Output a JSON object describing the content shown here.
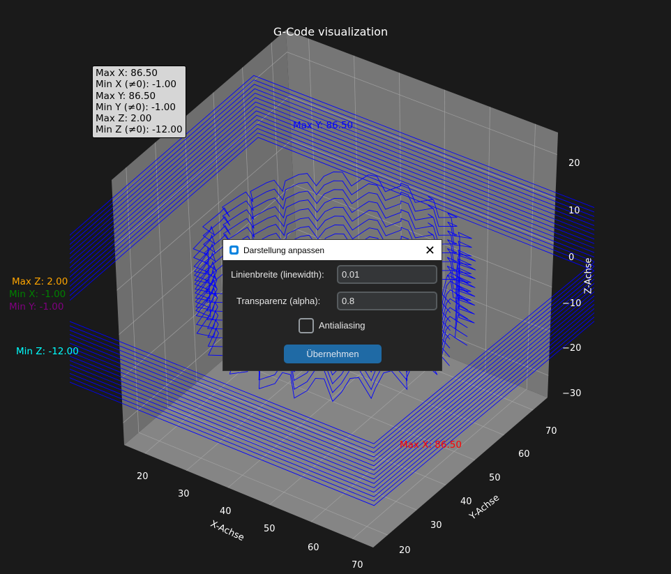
{
  "figure": {
    "title": "G-Code visualization",
    "stats_box": [
      "Max X: 86.50",
      "Min X (≠0): -1.00",
      "Max Y: 86.50",
      "Min Y (≠0): -1.00",
      "Max Z: 2.00",
      "Min Z (≠0): -12.00"
    ],
    "annotations": {
      "max_y": {
        "text": "Max Y: 86.50",
        "color": "#0000ff"
      },
      "max_x": {
        "text": "Max X: 86.50",
        "color": "#ff0000"
      },
      "max_z": {
        "text": "Max Z: 2.00",
        "color": "#ffa500"
      },
      "min_x": {
        "text": "Min X: -1.00",
        "color": "#008000"
      },
      "min_y": {
        "text": "Min Y: -1.00",
        "color": "#800080"
      },
      "min_z": {
        "text": "Min Z: -12.00",
        "color": "#00ffff"
      }
    },
    "line_color": "#0000ff",
    "background": "#1a1a1a"
  },
  "chart_data": {
    "type": "line3d",
    "title": "G-Code visualization",
    "xlabel": "X-Achse",
    "ylabel": "Y-Achse",
    "zlabel": "Z-Achse",
    "xticks": [
      "20",
      "30",
      "40",
      "50",
      "60",
      "70"
    ],
    "yticks": [
      "20",
      "30",
      "40",
      "50",
      "60",
      "70"
    ],
    "zticks": [
      "20",
      "10",
      "0",
      "−10",
      "−20",
      "−30"
    ],
    "xlim": [
      15,
      75
    ],
    "ylim": [
      15,
      75
    ],
    "zlim": [
      -35,
      25
    ],
    "grid": true,
    "data_extent": {
      "x": [
        -1,
        86.5
      ],
      "y": [
        -1,
        86.5
      ],
      "z": [
        -12,
        2
      ]
    }
  },
  "dialog": {
    "title": "Darstellung anpassen",
    "linewidth_label": "Linienbreite (linewidth):",
    "linewidth_value": "0.01",
    "alpha_label": "Transparenz (alpha):",
    "alpha_value": "0.8",
    "antialiasing_label": "Antialiasing",
    "antialiasing_checked": false,
    "apply_label": "Übernehmen",
    "accent": "#1f6aa5"
  }
}
